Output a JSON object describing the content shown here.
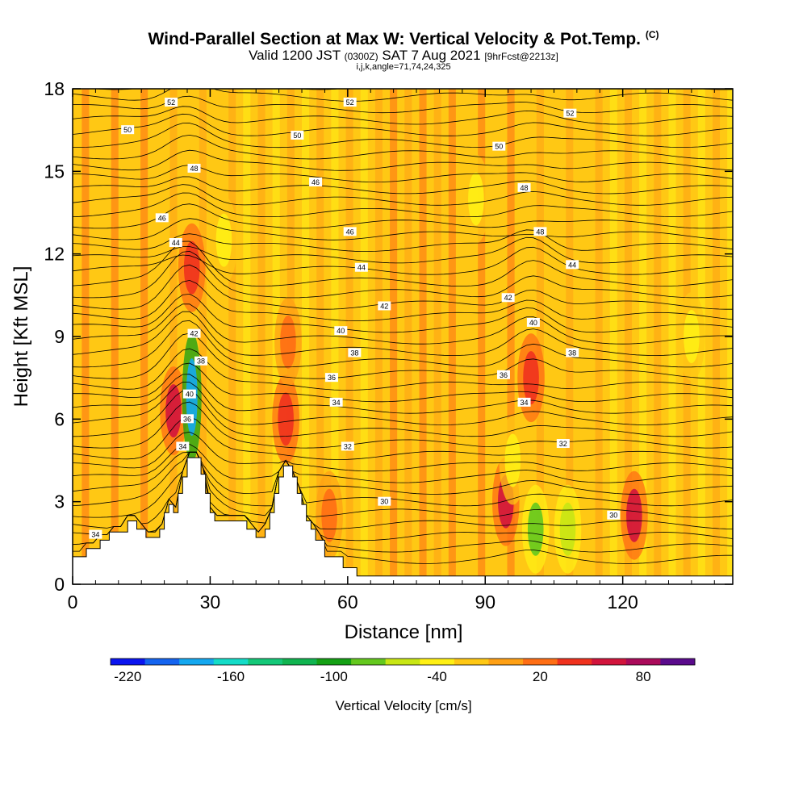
{
  "header": {
    "title": "Wind-Parallel Section at Max W: Vertical Velocity & Pot.Temp.",
    "copyright": "(C)",
    "valid_prefix": "Valid 1200 JST",
    "utc": "(0300Z)",
    "date": "SAT 7 Aug 2021",
    "forecast": "[9hrFcst@2213z]",
    "info": "i,j,k,angle=71,74,24,325"
  },
  "chart_data": {
    "type": "heatmap",
    "title": "Wind-Parallel Section at Max W: Vertical Velocity & Pot.Temp.",
    "xlabel": "Distance [nm]",
    "ylabel": "Height [Kft MSL]",
    "xlim": [
      0,
      144
    ],
    "ylim": [
      0,
      18
    ],
    "xticks": [
      0,
      30,
      60,
      90,
      120
    ],
    "yticks": [
      0,
      3,
      6,
      9,
      12,
      15,
      18
    ],
    "grid": false,
    "terrain": {
      "x": [
        0,
        3,
        3,
        6,
        6,
        8,
        8,
        12,
        12,
        14,
        14,
        16,
        16,
        19,
        19,
        20,
        20,
        21,
        21,
        22,
        22,
        23,
        23,
        24,
        24,
        25,
        25,
        26,
        26,
        28,
        28,
        29,
        29,
        30,
        30,
        31,
        31,
        33,
        33,
        38,
        38,
        40,
        40,
        42,
        42,
        43,
        43,
        44,
        44,
        45,
        45,
        46,
        46,
        48,
        48,
        49,
        49,
        50,
        50,
        51,
        51,
        52,
        52,
        53,
        53,
        55,
        55,
        59,
        59,
        62,
        62,
        144
      ],
      "height": [
        1.0,
        1.0,
        1.3,
        1.3,
        1.6,
        1.6,
        1.9,
        1.9,
        2.3,
        2.3,
        2.0,
        2.0,
        1.7,
        1.7,
        2.0,
        2.0,
        2.6,
        2.6,
        2.9,
        2.9,
        2.6,
        2.6,
        3.3,
        3.3,
        3.9,
        3.9,
        4.6,
        4.6,
        4.6,
        4.6,
        4.0,
        4.0,
        3.3,
        3.3,
        2.6,
        2.6,
        2.3,
        2.3,
        2.3,
        2.3,
        2.0,
        2.0,
        1.7,
        1.7,
        2.0,
        2.0,
        2.6,
        2.6,
        3.3,
        3.3,
        3.9,
        3.9,
        4.3,
        4.3,
        3.9,
        3.9,
        3.3,
        3.3,
        2.9,
        2.9,
        2.3,
        2.3,
        2.0,
        2.0,
        1.6,
        1.6,
        1.0,
        1.0,
        0.6,
        0.6,
        0.3,
        0.3
      ]
    },
    "theta_contours": {
      "labels": [
        {
          "x": 5,
          "y": 1.8,
          "text": "34"
        },
        {
          "x": 24,
          "y": 5.0,
          "text": "34"
        },
        {
          "x": 25,
          "y": 6.0,
          "text": "36"
        },
        {
          "x": 25.5,
          "y": 6.9,
          "text": "40"
        },
        {
          "x": 28,
          "y": 8.1,
          "text": "38"
        },
        {
          "x": 26.5,
          "y": 9.1,
          "text": "42"
        },
        {
          "x": 22.5,
          "y": 12.4,
          "text": "44"
        },
        {
          "x": 19.5,
          "y": 13.3,
          "text": "46"
        },
        {
          "x": 26.5,
          "y": 15.1,
          "text": "48"
        },
        {
          "x": 12,
          "y": 16.5,
          "text": "50"
        },
        {
          "x": 21.5,
          "y": 17.5,
          "text": "52"
        },
        {
          "x": 68,
          "y": 3.0,
          "text": "30"
        },
        {
          "x": 60,
          "y": 5.0,
          "text": "32"
        },
        {
          "x": 57.5,
          "y": 6.6,
          "text": "34"
        },
        {
          "x": 56.5,
          "y": 7.5,
          "text": "36"
        },
        {
          "x": 61.5,
          "y": 8.4,
          "text": "38"
        },
        {
          "x": 58.5,
          "y": 9.2,
          "text": "40"
        },
        {
          "x": 68,
          "y": 10.1,
          "text": "42"
        },
        {
          "x": 63,
          "y": 11.5,
          "text": "44"
        },
        {
          "x": 60.5,
          "y": 12.8,
          "text": "46"
        },
        {
          "x": 53,
          "y": 14.6,
          "text": "46"
        },
        {
          "x": 49,
          "y": 16.3,
          "text": "50"
        },
        {
          "x": 60.5,
          "y": 17.5,
          "text": "52"
        },
        {
          "x": 118,
          "y": 2.5,
          "text": "30"
        },
        {
          "x": 107,
          "y": 5.1,
          "text": "32"
        },
        {
          "x": 98.5,
          "y": 6.6,
          "text": "34"
        },
        {
          "x": 94,
          "y": 7.6,
          "text": "36"
        },
        {
          "x": 109,
          "y": 8.4,
          "text": "38"
        },
        {
          "x": 100.5,
          "y": 9.5,
          "text": "40"
        },
        {
          "x": 95,
          "y": 10.4,
          "text": "42"
        },
        {
          "x": 109,
          "y": 11.6,
          "text": "44"
        },
        {
          "x": 102,
          "y": 12.8,
          "text": "48"
        },
        {
          "x": 98.5,
          "y": 14.4,
          "text": "48"
        },
        {
          "x": 93,
          "y": 15.9,
          "text": "50"
        },
        {
          "x": 108.5,
          "y": 17.1,
          "text": "52"
        }
      ]
    },
    "colorbar": {
      "label": "Vertical Velocity [cm/s]",
      "ticks": [
        "-220",
        "-160",
        "-100",
        "-40",
        "20",
        "80"
      ],
      "bins": [
        -220,
        -200,
        -180,
        -160,
        -140,
        -120,
        -100,
        -80,
        -60,
        -40,
        -20,
        0,
        20,
        40,
        60,
        80,
        100
      ],
      "colors": [
        "#0a14f0",
        "#1464f0",
        "#14a8f0",
        "#14dcc8",
        "#14c878",
        "#10b450",
        "#14a014",
        "#64c81e",
        "#c8e614",
        "#fff014",
        "#ffc814",
        "#ffa014",
        "#ff6e14",
        "#f0321e",
        "#d2143c",
        "#aa0a5a",
        "#5a0a8c"
      ]
    },
    "velocity_features": [
      {
        "x": 22,
        "y": 6.3,
        "value": 60
      },
      {
        "x": 26,
        "y": 11.5,
        "value": 50
      },
      {
        "x": 46.5,
        "y": 6.0,
        "value": 40
      },
      {
        "x": 47,
        "y": 8.8,
        "value": 30
      },
      {
        "x": 94.5,
        "y": 3.0,
        "value": 70
      },
      {
        "x": 100,
        "y": 7.5,
        "value": 40
      },
      {
        "x": 122.5,
        "y": 2.5,
        "value": 70
      },
      {
        "x": 56,
        "y": 2.5,
        "value": 30
      },
      {
        "x": 26,
        "y": 6.8,
        "value": -180
      },
      {
        "x": 96,
        "y": 4.5,
        "value": -40
      },
      {
        "x": 101,
        "y": 2.0,
        "value": -70
      },
      {
        "x": 108,
        "y": 2.0,
        "value": -60
      },
      {
        "x": 33,
        "y": 12.5,
        "value": -30
      },
      {
        "x": 88,
        "y": 14,
        "value": -25
      },
      {
        "x": 135,
        "y": 9,
        "value": -25
      }
    ]
  }
}
